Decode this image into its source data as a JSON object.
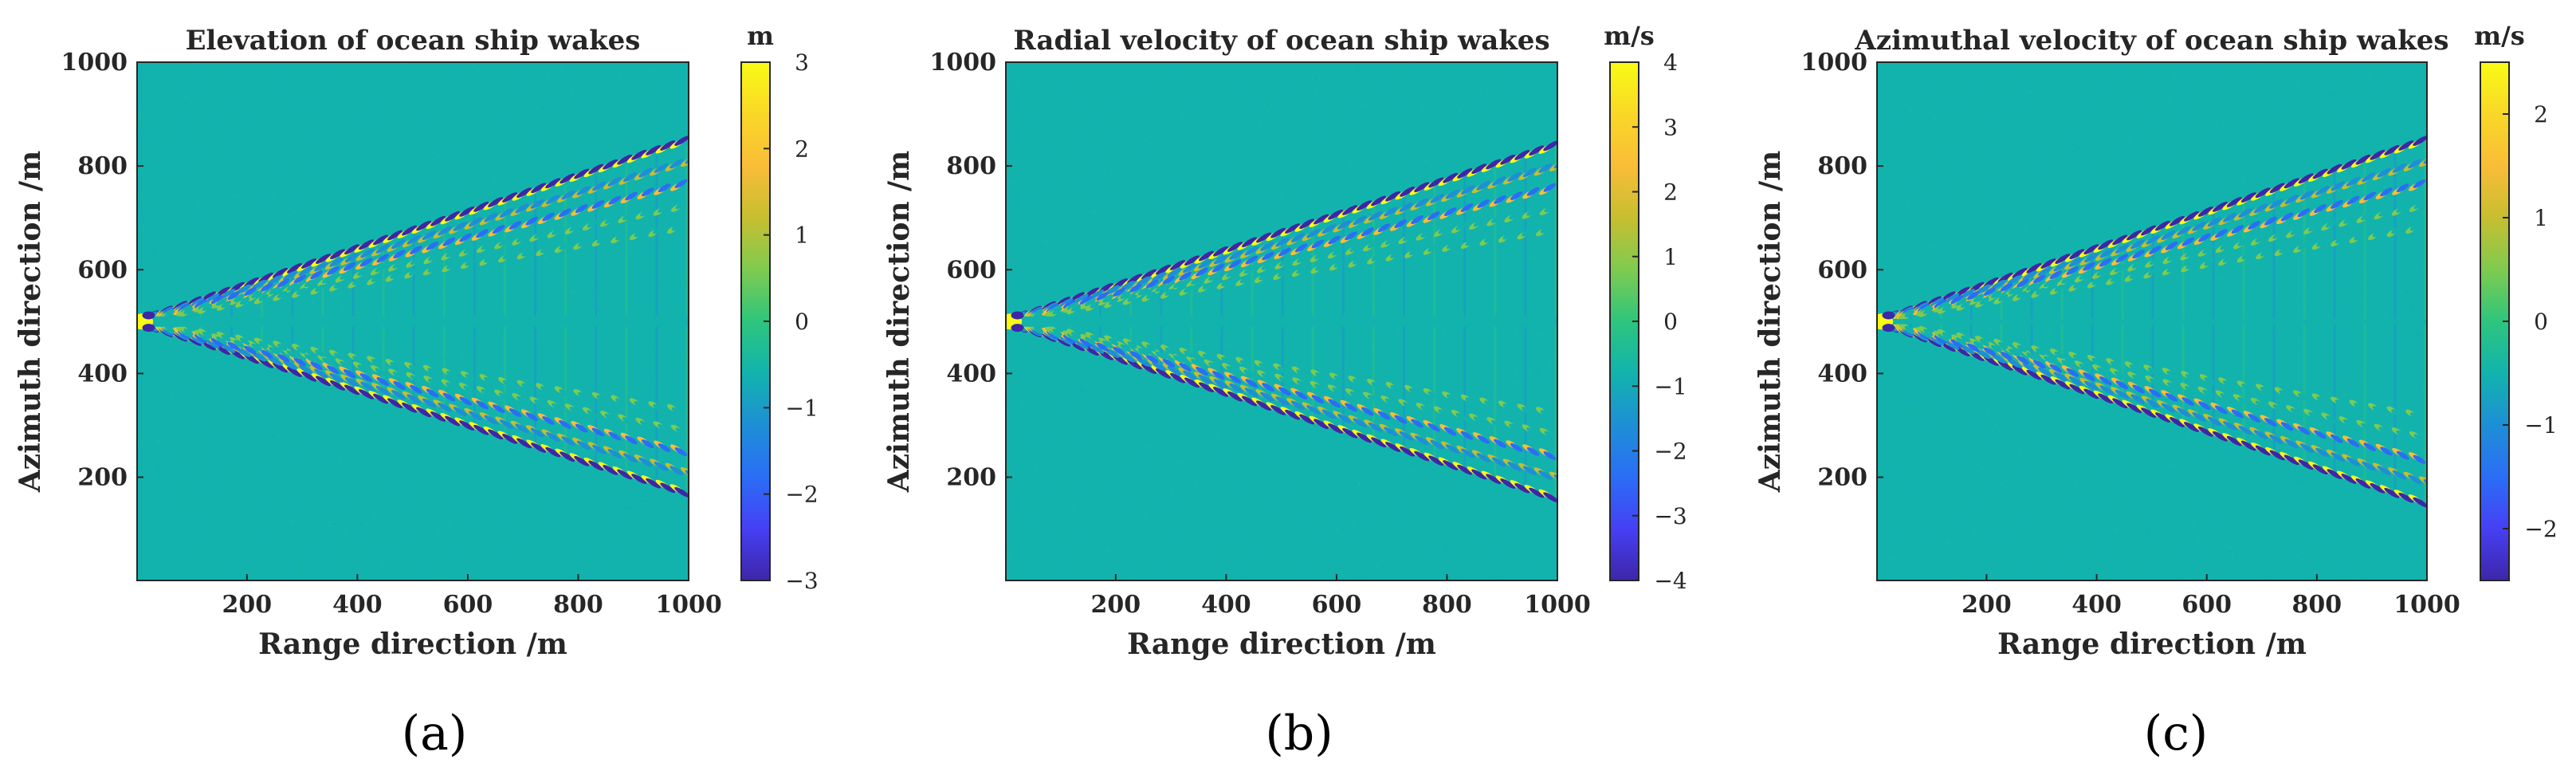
{
  "colors": {
    "ocean": "#12b3ad",
    "frame": "#262626",
    "parula": [
      "#3e26a8",
      "#4640f5",
      "#2a6ef5",
      "#1e8fd6",
      "#12b3ad",
      "#2ec57d",
      "#7fcb4f",
      "#c7be30",
      "#f9bd38",
      "#f9d727",
      "#f9fb15"
    ]
  },
  "chart_data": [
    {
      "type": "heatmap",
      "panel_label": "(a)",
      "title": "Elevation of ocean ship wakes",
      "xlabel": "Range direction /m",
      "ylabel": "Azimuth direction /m",
      "xlim": [
        1,
        1000
      ],
      "ylim": [
        1,
        1000
      ],
      "xticks": [
        "200",
        "400",
        "600",
        "800",
        "1000"
      ],
      "yticks": [
        "200",
        "400",
        "600",
        "800",
        "1000"
      ],
      "colorbar": {
        "unit": "m",
        "range": [
          -3,
          3
        ],
        "ticks": [
          "3",
          "2",
          "1",
          "0",
          "−1",
          "−2",
          "−3"
        ]
      },
      "wake": {
        "origin": [
          0,
          500
        ],
        "edge_at_x1000": [
          170,
          850
        ],
        "center_gap": 20,
        "peak": 3,
        "trough": -3
      }
    },
    {
      "type": "heatmap",
      "panel_label": "(b)",
      "title": "Radial velocity of ocean ship wakes",
      "xlabel": "Range direction /m",
      "ylabel": "Azimuth direction /m",
      "xlim": [
        1,
        1000
      ],
      "ylim": [
        1,
        1000
      ],
      "xticks": [
        "200",
        "400",
        "600",
        "800",
        "1000"
      ],
      "yticks": [
        "200",
        "400",
        "600",
        "800",
        "1000"
      ],
      "colorbar": {
        "unit": "m/s",
        "range": [
          -4,
          4
        ],
        "ticks": [
          "4",
          "3",
          "2",
          "1",
          "0",
          "−1",
          "−2",
          "−3",
          "−4"
        ]
      },
      "wake": {
        "origin": [
          0,
          500
        ],
        "edge_at_x1000": [
          160,
          840
        ],
        "center_gap": 20,
        "peak": 4,
        "trough": -4
      }
    },
    {
      "type": "heatmap",
      "panel_label": "(c)",
      "title": "Azimuthal velocity of ocean ship wakes",
      "xlabel": "Range direction /m",
      "ylabel": "Azimuth direction /m",
      "xlim": [
        1,
        1000
      ],
      "ylim": [
        1,
        1000
      ],
      "xticks": [
        "200",
        "400",
        "600",
        "800",
        "1000"
      ],
      "yticks": [
        "200",
        "400",
        "600",
        "800",
        "1000"
      ],
      "colorbar": {
        "unit": "m/s",
        "range": [
          -2.5,
          2.5
        ],
        "ticks": [
          "2",
          "1",
          "0",
          "−1",
          "−2"
        ]
      },
      "wake": {
        "origin": [
          0,
          500
        ],
        "edge_at_x1000": [
          150,
          850
        ],
        "center_gap": 10,
        "peak": 2.5,
        "trough": -2.5
      }
    }
  ]
}
